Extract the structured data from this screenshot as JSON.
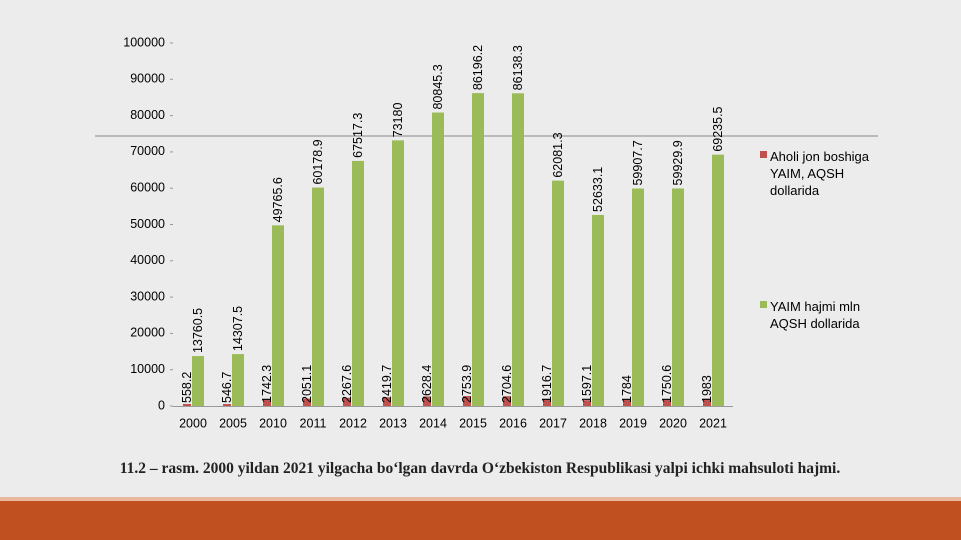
{
  "chart_data": {
    "type": "bar",
    "categories": [
      "2000",
      "2005",
      "2010",
      "2011",
      "2012",
      "2013",
      "2014",
      "2015",
      "2016",
      "2017",
      "2018",
      "2019",
      "2020",
      "2021"
    ],
    "series": [
      {
        "name": "Aholi jon boshiga YAIM, AQSH dollarida",
        "color": "#c0504d",
        "values": [
          558.2,
          546.7,
          1742.3,
          2051.1,
          2267.6,
          2419.7,
          2628.4,
          2753.9,
          2704.6,
          1916.7,
          1597.1,
          1784,
          1750.6,
          1983
        ]
      },
      {
        "name": "YAIM hajmi mln AQSH dollarida",
        "color": "#9bbb59",
        "values": [
          13760.5,
          14307.5,
          49765.6,
          60178.9,
          67517.3,
          73180,
          80845.3,
          86196.2,
          86138.3,
          62081.3,
          52633.1,
          59907.7,
          59929.9,
          69235.5
        ]
      }
    ],
    "ylim": [
      0,
      100000
    ],
    "yticks": [
      0,
      10000,
      20000,
      30000,
      40000,
      50000,
      60000,
      70000,
      80000,
      90000,
      100000
    ],
    "legend": "right",
    "caption": "11.2 – rasm. 2000 yildan 2021 yilgacha bo‘lgan davrda O‘zbekiston Respublikasi yalpi ichki mahsuloti hajmi."
  }
}
